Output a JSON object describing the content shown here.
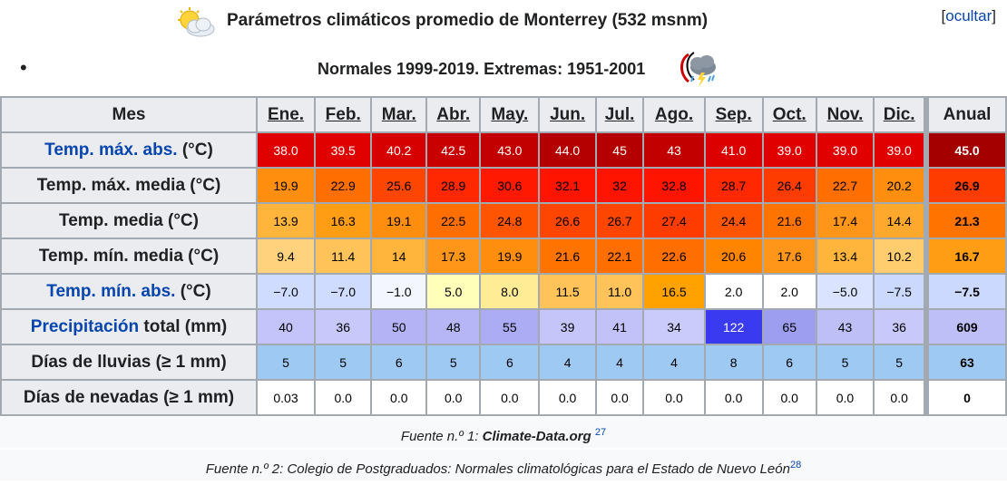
{
  "header": {
    "title": "Parámetros climáticos promedio de Monterrey (532 msnm)",
    "hide_label": "ocultar",
    "subtitle": "Normales 1999-2019. Extremas: 1951-2001",
    "bullet": "•",
    "icons": [
      "partly-cloudy-icon",
      "storm-icon"
    ]
  },
  "table": {
    "corner_label": "Mes",
    "months": [
      "Ene.",
      "Feb.",
      "Mar.",
      "Abr.",
      "May.",
      "Jun.",
      "Jul.",
      "Ago.",
      "Sep.",
      "Oct.",
      "Nov.",
      "Dic."
    ],
    "annual_label": "Anual",
    "rows": [
      {
        "name": "temp-max-abs",
        "label_link": "Temp. máx. abs.",
        "label_rest": " (°C)",
        "values": [
          "38.0",
          "39.5",
          "40.2",
          "42.5",
          "43.0",
          "44.0",
          "45",
          "43",
          "41.0",
          "39.0",
          "39.0",
          "39.0"
        ],
        "annual": "45.0",
        "colors": [
          "#e10000",
          "#e10000",
          "#d70000",
          "#c80000",
          "#c30000",
          "#b40000",
          "#b40000",
          "#c30000",
          "#dc0000",
          "#e10000",
          "#e10000",
          "#e10000"
        ],
        "annual_color": "#a50000",
        "text_color": "#ffffff"
      },
      {
        "name": "temp-max-media",
        "label_link": "",
        "label_rest": "Temp. máx. media (°C)",
        "values": [
          "19.9",
          "22.9",
          "25.6",
          "28.9",
          "30.6",
          "32.1",
          "32",
          "32.8",
          "28.7",
          "26.4",
          "22.7",
          "20.2"
        ],
        "annual": "26.9",
        "colors": [
          "#ff8e0e",
          "#ff6e00",
          "#ff4600",
          "#ff2800",
          "#ff1900",
          "#ff1400",
          "#ff1400",
          "#ff1400",
          "#ff2800",
          "#ff3c00",
          "#ff6e00",
          "#ff8e0e"
        ],
        "annual_color": "#ff3c00",
        "text_color": "#000000"
      },
      {
        "name": "temp-media",
        "label_link": "",
        "label_rest": "Temp. media (°C)",
        "values": [
          "13.9",
          "16.3",
          "19.1",
          "22.5",
          "24.8",
          "26.6",
          "26.7",
          "27.4",
          "24.4",
          "21.6",
          "17.4",
          "14.4"
        ],
        "annual": "21.3",
        "colors": [
          "#ffb43c",
          "#ff9e14",
          "#ff8e0e",
          "#ff6e00",
          "#ff5500",
          "#ff4600",
          "#ff4600",
          "#ff3c00",
          "#ff5500",
          "#ff7300",
          "#ff9619",
          "#ffa82e"
        ],
        "annual_color": "#ff7300",
        "text_color": "#000000"
      },
      {
        "name": "temp-min-media",
        "label_link": "",
        "label_rest": "Temp. mín. media (°C)",
        "values": [
          "9.4",
          "11.4",
          "14",
          "17.3",
          "19.9",
          "21.6",
          "22.1",
          "22.6",
          "20.6",
          "17.6",
          "13.4",
          "10.2"
        ],
        "annual": "16.7",
        "colors": [
          "#ffd27e",
          "#ffc35a",
          "#ffb43c",
          "#ff9619",
          "#ff8e0e",
          "#ff7300",
          "#ff6e00",
          "#ff6e00",
          "#ff8500",
          "#ff9619",
          "#ffb43c",
          "#ffcc6e"
        ],
        "annual_color": "#ff9e14",
        "text_color": "#000000"
      },
      {
        "name": "temp-min-abs",
        "label_link": "Temp. mín. abs.",
        "label_rest": " (°C)",
        "values": [
          "−7.0",
          "−7.0",
          "−1.0",
          "5.0",
          "8.0",
          "11.5",
          "11.0",
          "16.5",
          "2.0",
          "2.0",
          "−5.0",
          "−7.5"
        ],
        "annual": "−7.5",
        "colors": [
          "#cfdcff",
          "#cfdcff",
          "#f4f6ff",
          "#ffffb9",
          "#ffec95",
          "#ffc35a",
          "#ffc35a",
          "#ffa200",
          "#ffffff",
          "#ffffff",
          "#dae3ff",
          "#cbd9ff"
        ],
        "annual_color": "#cbd9ff",
        "text_color": "#000000"
      },
      {
        "name": "precipitacion",
        "label_link": "Precipitación",
        "label_rest": " total (mm)",
        "values": [
          "40",
          "36",
          "50",
          "48",
          "55",
          "39",
          "41",
          "34",
          "122",
          "65",
          "43",
          "36"
        ],
        "annual": "609",
        "colors": [
          "#c4c4fa",
          "#c8c8fb",
          "#b3b3f5",
          "#b6b6f6",
          "#acacf4",
          "#c5c5fa",
          "#c2c2f9",
          "#cacafb",
          "#3a3af0",
          "#9e9ef0",
          "#bfbff8",
          "#c8c8fb"
        ],
        "annual_color": "#bfbff8",
        "text_color": "#000000"
      },
      {
        "name": "dias-lluvias",
        "label_link": "",
        "label_rest": "Días de lluvias (≥ 1 mm)",
        "values": [
          "5",
          "5",
          "6",
          "5",
          "6",
          "4",
          "4",
          "4",
          "8",
          "6",
          "5",
          "5"
        ],
        "annual": "63",
        "colors": [
          "#9dc9f2",
          "#9dc9f2",
          "#9dc9f2",
          "#9dc9f2",
          "#9dc9f2",
          "#9dc9f2",
          "#9dc9f2",
          "#9dc9f2",
          "#9dc9f2",
          "#9dc9f2",
          "#9dc9f2",
          "#9dc9f2"
        ],
        "annual_color": "#9dc9f2",
        "text_color": "#000000"
      },
      {
        "name": "dias-nevadas",
        "label_link": "",
        "label_rest": "Días de nevadas (≥ 1 mm)",
        "values": [
          "0.03",
          "0.0",
          "0.0",
          "0.0",
          "0.0",
          "0.0",
          "0.0",
          "0.0",
          "0.0",
          "0.0",
          "0.0",
          "0.0"
        ],
        "annual": "0",
        "colors": [
          "#ffffff",
          "#ffffff",
          "#ffffff",
          "#ffffff",
          "#ffffff",
          "#ffffff",
          "#ffffff",
          "#ffffff",
          "#ffffff",
          "#ffffff",
          "#ffffff",
          "#ffffff"
        ],
        "annual_color": "#ffffff",
        "text_color": "#000000"
      }
    ]
  },
  "sources": {
    "s1_prefix": "Fuente n.º 1: ",
    "s1_name": "Climate-Data.org",
    "s1_ref": "27",
    "s2_text": "Fuente n.º 2: Colegio de Postgraduados: Normales climatológicas para el Estado de Nuevo León",
    "s2_ref": "28"
  }
}
